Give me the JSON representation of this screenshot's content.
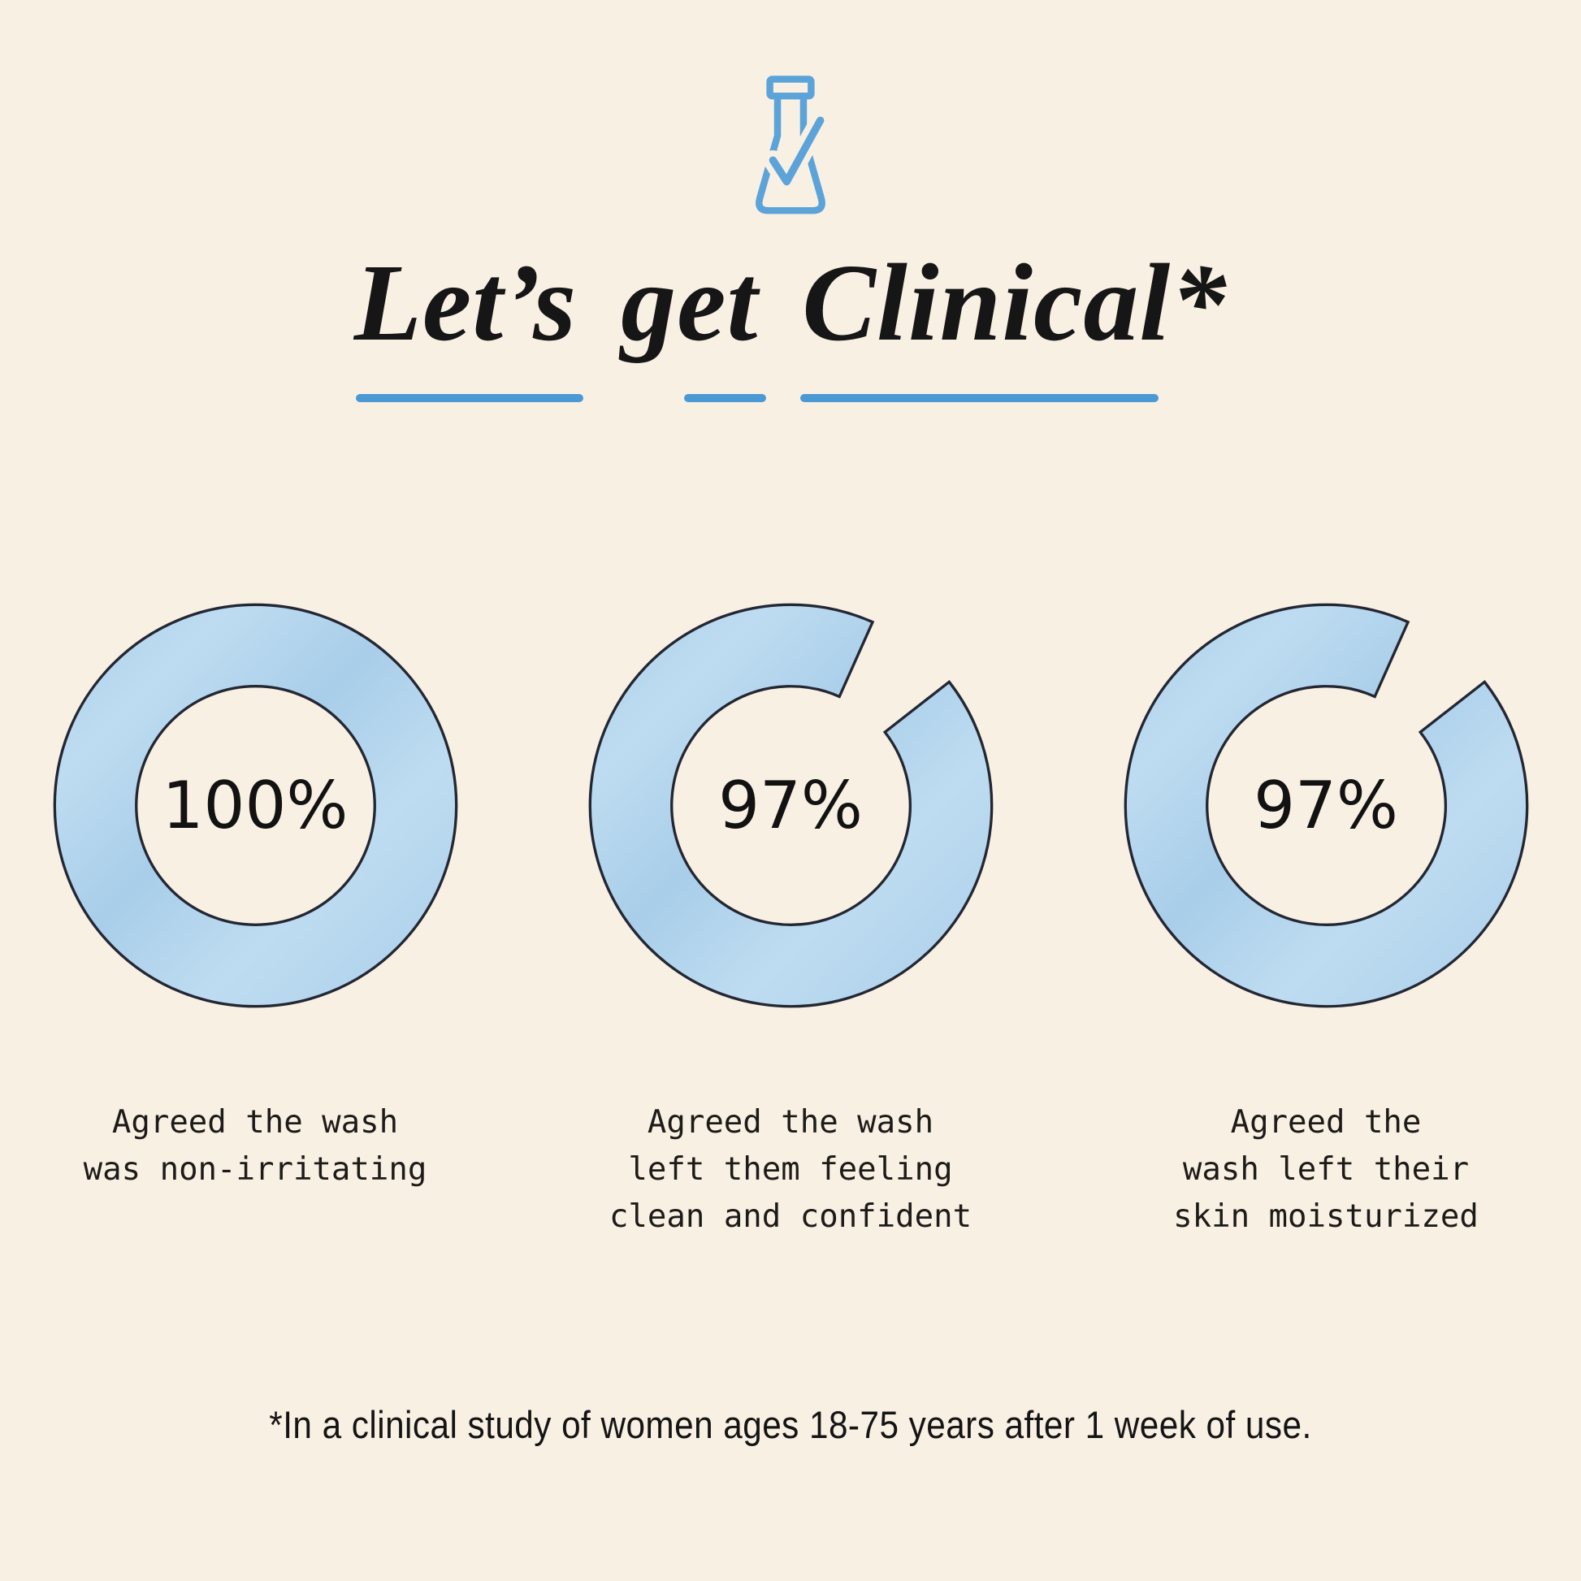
{
  "colors": {
    "background": "#f9f0e4",
    "accent_blue": "#4b99d4",
    "icon_blue": "#5ba3d9",
    "ring_fill": "#a9cee9",
    "ring_fill_light": "#bedcf1",
    "ring_outline": "#232733",
    "text_dark": "#171717"
  },
  "header": {
    "icon": "flask-check-icon",
    "title_full": "Let’s get Clinical*",
    "title_words": [
      {
        "text": "Let’s"
      },
      {
        "text": "get"
      },
      {
        "text": "Clinical*"
      }
    ]
  },
  "chart_data": {
    "type": "pie",
    "variant": "donut",
    "title": "Let’s get Clinical*",
    "legend_position": "none",
    "items": [
      {
        "value": 100,
        "label": "100%",
        "caption": "Agreed the wash\nwas non-irritating"
      },
      {
        "value": 97,
        "label": "97%",
        "caption": "Agreed the wash\nleft them feeling\nclean and confident"
      },
      {
        "value": 97,
        "label": "97%",
        "caption": "Agreed the\nwash left their\nskin moisturized"
      }
    ],
    "gap_style": {
      "gap_start_deg": 24,
      "gap_end_deg": 52,
      "outer_radius": 96,
      "inner_radius": 57
    }
  },
  "footnote": "*In a clinical study of women ages 18-75 years after 1 week of use."
}
